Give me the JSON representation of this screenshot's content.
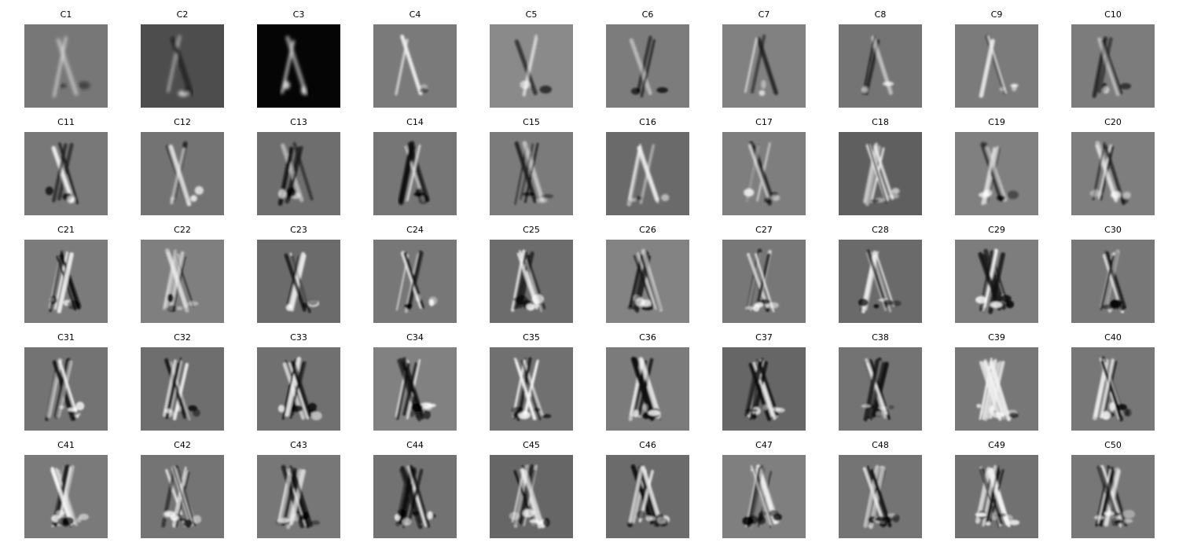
{
  "figure": {
    "panels": [
      {
        "title": "C1",
        "background": "#777777"
      },
      {
        "title": "C2",
        "background": "#4d4d4d"
      },
      {
        "title": "C3",
        "background": "#050505"
      },
      {
        "title": "C4",
        "background": "#7a7a7a"
      },
      {
        "title": "C5",
        "background": "#8a8a8a"
      },
      {
        "title": "C6",
        "background": "#7c7c7c"
      },
      {
        "title": "C7",
        "background": "#818181"
      },
      {
        "title": "C8",
        "background": "#747474"
      },
      {
        "title": "C9",
        "background": "#7b7b7b"
      },
      {
        "title": "C10",
        "background": "#7c7c7c"
      },
      {
        "title": "C11",
        "background": "#787878"
      },
      {
        "title": "C12",
        "background": "#737373"
      },
      {
        "title": "C13",
        "background": "#6e6e6e"
      },
      {
        "title": "C14",
        "background": "#767676"
      },
      {
        "title": "C15",
        "background": "#7b7b7b"
      },
      {
        "title": "C16",
        "background": "#6a6a6a"
      },
      {
        "title": "C17",
        "background": "#7e7e7e"
      },
      {
        "title": "C18",
        "background": "#5f5f5f"
      },
      {
        "title": "C19",
        "background": "#808080"
      },
      {
        "title": "C20",
        "background": "#7e7e7e"
      },
      {
        "title": "C21",
        "background": "#7b7b7b"
      },
      {
        "title": "C22",
        "background": "#7f7f7f"
      },
      {
        "title": "C23",
        "background": "#6b6b6b"
      },
      {
        "title": "C24",
        "background": "#777777"
      },
      {
        "title": "C25",
        "background": "#6c6c6c"
      },
      {
        "title": "C26",
        "background": "#838383"
      },
      {
        "title": "C27",
        "background": "#777777"
      },
      {
        "title": "C28",
        "background": "#6a6a6a"
      },
      {
        "title": "C29",
        "background": "#7d7d7d"
      },
      {
        "title": "C30",
        "background": "#777777"
      },
      {
        "title": "C31",
        "background": "#737373"
      },
      {
        "title": "C32",
        "background": "#6e6e6e"
      },
      {
        "title": "C33",
        "background": "#707070"
      },
      {
        "title": "C34",
        "background": "#818181"
      },
      {
        "title": "C35",
        "background": "#707070"
      },
      {
        "title": "C36",
        "background": "#7b7b7b"
      },
      {
        "title": "C37",
        "background": "#666666"
      },
      {
        "title": "C38",
        "background": "#737373"
      },
      {
        "title": "C39",
        "background": "#777777"
      },
      {
        "title": "C40",
        "background": "#777777"
      },
      {
        "title": "C41",
        "background": "#7a7a7a"
      },
      {
        "title": "C42",
        "background": "#747474"
      },
      {
        "title": "C43",
        "background": "#777777"
      },
      {
        "title": "C44",
        "background": "#727272"
      },
      {
        "title": "C45",
        "background": "#666666"
      },
      {
        "title": "C46",
        "background": "#6b6b6b"
      },
      {
        "title": "C47",
        "background": "#7f7f7f"
      },
      {
        "title": "C48",
        "background": "#747474"
      },
      {
        "title": "C49",
        "background": "#717171"
      },
      {
        "title": "C50",
        "background": "#777777"
      }
    ]
  }
}
